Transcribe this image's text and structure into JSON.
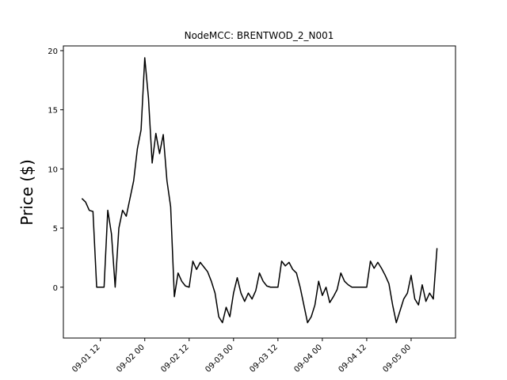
{
  "chart_data": {
    "type": "line",
    "title": "NodeMCC: BRENTWOD_2_N001",
    "y_label": "Price ($)",
    "x": [
      "09-01 07",
      "09-01 08",
      "09-01 09",
      "09-01 10",
      "09-01 11",
      "09-01 12",
      "09-01 13",
      "09-01 14",
      "09-01 15",
      "09-01 16",
      "09-01 17",
      "09-01 18",
      "09-01 19",
      "09-01 20",
      "09-01 21",
      "09-01 22",
      "09-01 23",
      "09-02 00",
      "09-02 01",
      "09-02 02",
      "09-02 03",
      "09-02 04",
      "09-02 05",
      "09-02 06",
      "09-02 07",
      "09-02 08",
      "09-02 09",
      "09-02 10",
      "09-02 11",
      "09-02 12",
      "09-02 13",
      "09-02 14",
      "09-02 15",
      "09-02 16",
      "09-02 17",
      "09-02 18",
      "09-02 19",
      "09-02 20",
      "09-02 21",
      "09-02 22",
      "09-02 23",
      "09-03 00",
      "09-03 01",
      "09-03 02",
      "09-03 03",
      "09-03 04",
      "09-03 05",
      "09-03 06",
      "09-03 07",
      "09-03 08",
      "09-03 09",
      "09-03 10",
      "09-03 11",
      "09-03 12",
      "09-03 13",
      "09-03 14",
      "09-03 15",
      "09-03 16",
      "09-03 17",
      "09-03 18",
      "09-03 19",
      "09-03 20",
      "09-03 21",
      "09-03 22",
      "09-03 23",
      "09-04 00",
      "09-04 01",
      "09-04 02",
      "09-04 03",
      "09-04 04",
      "09-04 05",
      "09-04 06",
      "09-04 07",
      "09-04 08",
      "09-04 09",
      "09-04 10",
      "09-04 11",
      "09-04 12",
      "09-04 13",
      "09-04 14",
      "09-04 15",
      "09-04 16",
      "09-04 17",
      "09-04 18",
      "09-04 19",
      "09-04 20",
      "09-04 21",
      "09-04 22",
      "09-04 23",
      "09-05 00",
      "09-05 01",
      "09-05 02",
      "09-05 03",
      "09-05 04",
      "09-05 05",
      "09-05 06",
      "09-05 07"
    ],
    "series": [
      {
        "color": "#000000",
        "values": [
          7.5,
          7.2,
          6.5,
          6.4,
          0,
          0,
          0,
          6.5,
          4.5,
          0,
          5,
          6.5,
          6,
          7.5,
          9,
          11.7,
          13.3,
          19.4,
          16,
          10.5,
          13,
          11.3,
          12.9,
          9,
          6.8,
          -0.8,
          1.2,
          0.5,
          0.1,
          0,
          2.2,
          1.5,
          2.1,
          1.7,
          1.3,
          0.5,
          -0.5,
          -2.5,
          -3,
          -1.7,
          -2.5,
          -0.5,
          0.8,
          -0.5,
          -1.2,
          -0.5,
          -1,
          -0.3,
          1.2,
          0.5,
          0.1,
          0,
          0,
          0,
          2.2,
          1.8,
          2.1,
          1.5,
          1.2,
          0,
          -1.5,
          -3,
          -2.5,
          -1.5,
          0.5,
          -0.7,
          0,
          -1.3,
          -0.8,
          -0.2,
          1.2,
          0.5,
          0.2,
          0,
          0,
          0,
          0,
          0,
          2.2,
          1.6,
          2.1,
          1.6,
          1,
          0.3,
          -1.5,
          -3,
          -2,
          -1,
          -0.5,
          1,
          -1,
          -1.5,
          0.2,
          -1.2,
          -0.5,
          -1,
          3.3
        ]
      }
    ],
    "xlim": [
      "09-01 02",
      "09-05 12"
    ],
    "xticks": [
      "09-01 12",
      "09-02 00",
      "09-02 12",
      "09-03 00",
      "09-03 12",
      "09-04 00",
      "09-04 12",
      "09-05 00"
    ],
    "ylim": [
      -4.3,
      20.4
    ],
    "yticks": [
      0,
      5,
      10,
      15,
      20
    ]
  }
}
